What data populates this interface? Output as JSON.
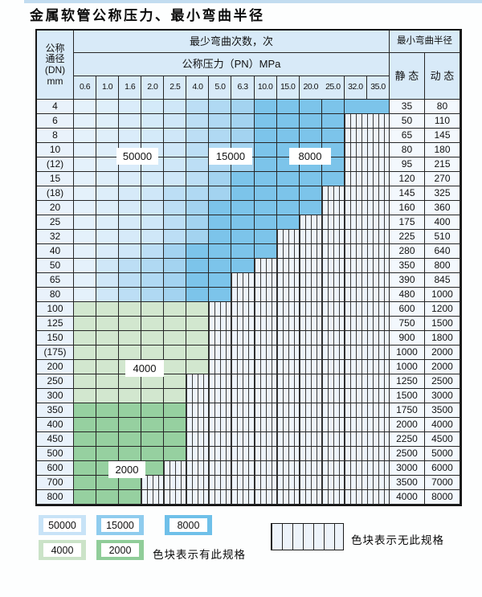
{
  "title": "金属软管公称压力、最小弯曲半径",
  "table": {
    "header": {
      "dn_lines": [
        "公称",
        "通径",
        "(DN)",
        "mm"
      ],
      "bend_cycles_label": "最少弯曲次数，次",
      "pressure_label": "公称压力（PN）MPa",
      "min_radius_label": "最小弯曲半径",
      "static_label": "静 态",
      "dynamic_label": "动 态"
    },
    "pressure_columns": [
      "0.6",
      "1.0",
      "1.6",
      "2.0",
      "2.5",
      "4.0",
      "5.0",
      "6.3",
      "10.0",
      "15.0",
      "20.0",
      "25.0",
      "32.0",
      "35.0"
    ],
    "rows": [
      {
        "dn": "4",
        "static": "35",
        "dynamic": "80",
        "spec_through": 14,
        "zone": "blue",
        "b2": 6,
        "b3": 9
      },
      {
        "dn": "6",
        "static": "50",
        "dynamic": "110",
        "spec_through": 12,
        "zone": "blue",
        "b2": 6,
        "b3": 9
      },
      {
        "dn": "8",
        "static": "65",
        "dynamic": "145",
        "spec_through": 12,
        "zone": "blue",
        "b2": 6,
        "b3": 9
      },
      {
        "dn": "10",
        "static": "80",
        "dynamic": "180",
        "spec_through": 12,
        "zone": "blue",
        "b2": 6,
        "b3": 9
      },
      {
        "dn": "(12)",
        "static": "95",
        "dynamic": "215",
        "spec_through": 12,
        "zone": "blue",
        "b2": 6,
        "b3": 9
      },
      {
        "dn": "15",
        "static": "120",
        "dynamic": "270",
        "spec_through": 12,
        "zone": "blue",
        "b2": 6,
        "b3": 8
      },
      {
        "dn": "(18)",
        "static": "145",
        "dynamic": "325",
        "spec_through": 11,
        "zone": "blue",
        "b2": 5,
        "b3": 8
      },
      {
        "dn": "20",
        "static": "160",
        "dynamic": "360",
        "spec_through": 11,
        "zone": "blue",
        "b2": 5,
        "b3": 7
      },
      {
        "dn": "25",
        "static": "175",
        "dynamic": "400",
        "spec_through": 10,
        "zone": "blue",
        "b2": 5,
        "b3": 7
      },
      {
        "dn": "32",
        "static": "225",
        "dynamic": "510",
        "spec_through": 9,
        "zone": "blue",
        "b2": 5,
        "b3": 7
      },
      {
        "dn": "40",
        "static": "280",
        "dynamic": "640",
        "spec_through": 9,
        "zone": "blue",
        "b2": 4,
        "b3": 6
      },
      {
        "dn": "50",
        "static": "350",
        "dynamic": "800",
        "spec_through": 8,
        "zone": "blue",
        "b2": 3,
        "b3": 6
      },
      {
        "dn": "65",
        "static": "390",
        "dynamic": "845",
        "spec_through": 7,
        "zone": "blue",
        "b2": 3,
        "b3": 6
      },
      {
        "dn": "80",
        "static": "480",
        "dynamic": "1000",
        "spec_through": 7,
        "zone": "blue",
        "b2": 3,
        "b3": 6
      },
      {
        "dn": "100",
        "static": "600",
        "dynamic": "1200",
        "spec_through": 6,
        "zone": "green-light"
      },
      {
        "dn": "125",
        "static": "750",
        "dynamic": "1500",
        "spec_through": 6,
        "zone": "green-light"
      },
      {
        "dn": "150",
        "static": "900",
        "dynamic": "1800",
        "spec_through": 6,
        "zone": "green-light"
      },
      {
        "dn": "(175)",
        "static": "1000",
        "dynamic": "2000",
        "spec_through": 6,
        "zone": "green-light"
      },
      {
        "dn": "200",
        "static": "1000",
        "dynamic": "2000",
        "spec_through": 6,
        "zone": "green-light"
      },
      {
        "dn": "250",
        "static": "1250",
        "dynamic": "2500",
        "spec_through": 5,
        "zone": "green-light"
      },
      {
        "dn": "300",
        "static": "1500",
        "dynamic": "3000",
        "spec_through": 5,
        "zone": "green-light"
      },
      {
        "dn": "350",
        "static": "1750",
        "dynamic": "3500",
        "spec_through": 5,
        "zone": "green-dark"
      },
      {
        "dn": "400",
        "static": "2000",
        "dynamic": "4000",
        "spec_through": 5,
        "zone": "green-dark"
      },
      {
        "dn": "450",
        "static": "2250",
        "dynamic": "4500",
        "spec_through": 5,
        "zone": "green-dark"
      },
      {
        "dn": "500",
        "static": "2500",
        "dynamic": "5000",
        "spec_through": 5,
        "zone": "green-dark"
      },
      {
        "dn": "600",
        "static": "3000",
        "dynamic": "6000",
        "spec_through": 4,
        "zone": "green-dark"
      },
      {
        "dn": "700",
        "static": "3500",
        "dynamic": "7000",
        "spec_through": 3,
        "zone": "green-dark"
      },
      {
        "dn": "800",
        "static": "4000",
        "dynamic": "8000",
        "spec_through": 3,
        "zone": "green-dark"
      }
    ]
  },
  "zone_labels": [
    {
      "text": "50000"
    },
    {
      "text": "15000"
    },
    {
      "text": "8000"
    },
    {
      "text": "4000"
    },
    {
      "text": "2000"
    }
  ],
  "colors": {
    "top_strip": "#c2dcf0",
    "cycles_50000_light": "#e4f1fb",
    "cycles_50000": "#cfe7f8",
    "cycles_15000_light": "#bcdef5",
    "cycles_15000": "#a3d3f0",
    "cycles_8000": "#7cc4ea",
    "cycles_4000": "#d2e7cf",
    "cycles_2000": "#96d0a0",
    "header_bg": "#d8eaf8",
    "dn_bg": "#e9f2fb",
    "radius_bg": "#f3f8fd",
    "nospec_bg": "#edf3fa",
    "grid_line": "#262626"
  },
  "legend": {
    "items": [
      {
        "value": "50000",
        "color": "#c8e3f7"
      },
      {
        "value": "15000",
        "color": "#8fccee"
      },
      {
        "value": "8000",
        "color": "#6fc0e9"
      },
      {
        "value": "4000",
        "color": "#cbe3c8"
      },
      {
        "value": "2000",
        "color": "#90cd99"
      }
    ],
    "has_spec_text": "色块表示有此规格",
    "no_spec_text": "色块表示无此规格"
  }
}
